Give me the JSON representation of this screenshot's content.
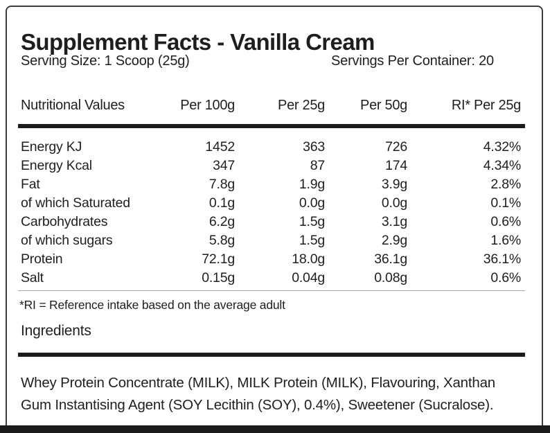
{
  "label": {
    "title": "Supplement Facts - Vanilla Cream",
    "serving_size": "Serving Size: 1 Scoop (25g)",
    "servings_per_container": "Servings Per Container: 20",
    "footnote": "*RI = Reference intake based on the average adult",
    "ingredients_heading": "Ingredients",
    "ingredients_lines": [
      "Whey Protein Concentrate (MILK), MILK Protein (MILK), Flavouring, Xanthan",
      "Gum Instantising Agent (SOY Lecithin (SOY), 0.4%), Sweetener (Sucralose)."
    ]
  },
  "table": {
    "headers": [
      "Nutritional Values",
      "Per 100g",
      "Per 25g",
      "Per 50g",
      "RI* Per 25g"
    ],
    "rows": [
      {
        "name": "Energy KJ",
        "per_100g": "1452",
        "per_25g": "363",
        "per_50g": "726",
        "ri": "4.32%"
      },
      {
        "name": "Energy Kcal",
        "per_100g": "347",
        "per_25g": "87",
        "per_50g": "174",
        "ri": "4.34%"
      },
      {
        "name": "Fat",
        "per_100g": "7.8g",
        "per_25g": "1.9g",
        "per_50g": "3.9g",
        "ri": "2.8%"
      },
      {
        "name": "of which Saturated",
        "per_100g": "0.1g",
        "per_25g": "0.0g",
        "per_50g": "0.0g",
        "ri": "0.1%"
      },
      {
        "name": "Carbohydrates",
        "per_100g": "6.2g",
        "per_25g": "1.5g",
        "per_50g": "3.1g",
        "ri": "0.6%"
      },
      {
        "name": "of which sugars",
        "per_100g": "5.8g",
        "per_25g": "1.5g",
        "per_50g": "2.9g",
        "ri": "1.6%"
      },
      {
        "name": "Protein",
        "per_100g": "72.1g",
        "per_25g": "18.0g",
        "per_50g": "36.1g",
        "ri": "36.1%"
      },
      {
        "name": "Salt",
        "per_100g": "0.15g",
        "per_25g": "0.04g",
        "per_50g": "0.08g",
        "ri": "0.6%"
      }
    ]
  },
  "colors": {
    "text": "#1e1e1e",
    "rule": "#1c1c1c",
    "border": "#3c3c3c",
    "thin_rule": "#a9a9a9"
  }
}
